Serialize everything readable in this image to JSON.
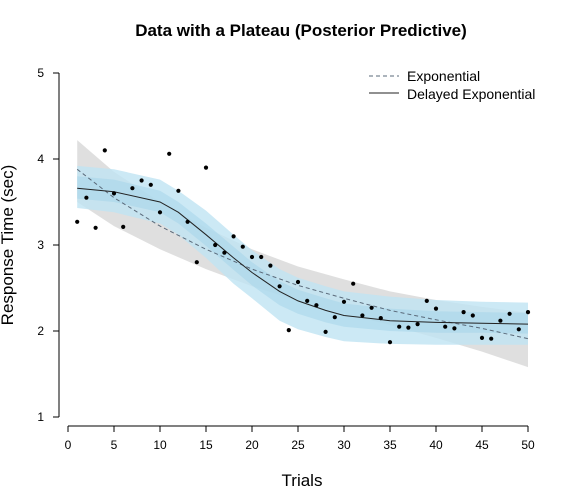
{
  "chart_data": {
    "type": "scatter",
    "title": "Data with a Plateau (Posterior Predictive)",
    "xlabel": "Trials",
    "ylabel": "Response Time (sec)",
    "xlim": [
      0,
      50
    ],
    "ylim": [
      1,
      5
    ],
    "x_ticks": [
      0,
      5,
      10,
      15,
      20,
      25,
      30,
      35,
      40,
      45,
      50
    ],
    "y_ticks": [
      1,
      2,
      3,
      4,
      5
    ],
    "grid": false,
    "legend_position": "top-right",
    "colors": {
      "points": "#000000",
      "exp_band": "#d9d9d9",
      "delayed_band_outer": "#bfe4f3",
      "delayed_band_inner": "#a5d5ea",
      "exp_line": "#5a6a7a",
      "delayed_line": "#222222"
    },
    "series": [
      {
        "name": "Exponential",
        "style": "dashed",
        "x": [
          1,
          5,
          10,
          15,
          20,
          25,
          30,
          35,
          40,
          45,
          50
        ],
        "y": [
          3.88,
          3.55,
          3.22,
          2.95,
          2.72,
          2.53,
          2.38,
          2.24,
          2.13,
          2.03,
          1.91
        ],
        "band_low": [
          3.5,
          3.22,
          2.95,
          2.72,
          2.52,
          2.35,
          2.2,
          2.07,
          1.92,
          1.76,
          1.58
        ],
        "band_high": [
          4.22,
          3.85,
          3.5,
          3.2,
          2.95,
          2.75,
          2.6,
          2.46,
          2.36,
          2.28,
          2.21
        ]
      },
      {
        "name": "Delayed Exponential",
        "style": "solid",
        "x": [
          1,
          5,
          10,
          12,
          15,
          18,
          20,
          23,
          25,
          28,
          30,
          35,
          40,
          45,
          50
        ],
        "y": [
          3.66,
          3.62,
          3.5,
          3.38,
          3.12,
          2.85,
          2.68,
          2.46,
          2.35,
          2.24,
          2.18,
          2.12,
          2.1,
          2.09,
          2.08
        ],
        "band_low": [
          3.43,
          3.38,
          3.25,
          3.12,
          2.85,
          2.55,
          2.38,
          2.12,
          2.02,
          1.93,
          1.88,
          1.85,
          1.84,
          1.84,
          1.84
        ],
        "band_high": [
          3.92,
          3.88,
          3.76,
          3.63,
          3.4,
          3.12,
          2.94,
          2.72,
          2.62,
          2.52,
          2.46,
          2.4,
          2.36,
          2.34,
          2.33
        ],
        "inner_low": [
          3.54,
          3.5,
          3.38,
          3.25,
          2.99,
          2.71,
          2.53,
          2.3,
          2.2,
          2.1,
          2.05,
          2.0,
          1.98,
          1.98,
          1.97
        ],
        "inner_high": [
          3.8,
          3.76,
          3.63,
          3.5,
          3.25,
          2.98,
          2.8,
          2.58,
          2.48,
          2.38,
          2.32,
          2.26,
          2.23,
          2.22,
          2.21
        ]
      }
    ],
    "points": {
      "x": [
        1,
        2,
        3,
        4,
        5,
        6,
        7,
        8,
        9,
        10,
        11,
        12,
        13,
        14,
        15,
        16,
        17,
        18,
        19,
        20,
        21,
        22,
        23,
        24,
        25,
        26,
        27,
        28,
        29,
        30,
        31,
        32,
        33,
        34,
        35,
        36,
        37,
        38,
        39,
        40,
        41,
        42,
        43,
        44,
        45,
        46,
        47,
        48,
        49,
        50
      ],
      "y": [
        3.27,
        3.55,
        3.2,
        4.1,
        3.6,
        3.21,
        3.66,
        3.75,
        3.7,
        3.38,
        4.06,
        3.63,
        3.27,
        2.8,
        3.9,
        3.0,
        2.91,
        3.1,
        2.98,
        2.86,
        2.86,
        2.76,
        2.52,
        2.01,
        2.57,
        2.35,
        2.3,
        1.99,
        2.16,
        2.34,
        2.55,
        2.18,
        2.27,
        2.15,
        1.87,
        2.05,
        2.04,
        2.08,
        2.35,
        2.26,
        2.05,
        2.03,
        2.22,
        2.18,
        1.92,
        1.91,
        2.12,
        2.2,
        2.02,
        2.22
      ]
    }
  }
}
